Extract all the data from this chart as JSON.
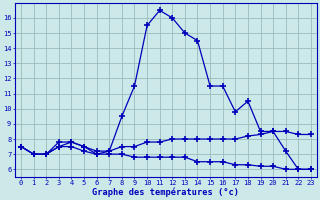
{
  "hours": [
    0,
    1,
    2,
    3,
    4,
    5,
    6,
    7,
    8,
    9,
    10,
    11,
    12,
    13,
    14,
    15,
    16,
    17,
    18,
    19,
    20,
    21,
    22,
    23
  ],
  "temp_max": [
    7.5,
    7.0,
    7.0,
    7.5,
    7.8,
    7.5,
    7.0,
    7.2,
    9.5,
    11.5,
    15.5,
    16.5,
    16.0,
    15.0,
    14.5,
    11.5,
    11.5,
    9.8,
    10.5,
    8.5,
    8.5,
    7.2,
    6.0,
    6.0
  ],
  "temp_avg": [
    7.5,
    7.0,
    7.0,
    7.8,
    7.8,
    7.5,
    7.2,
    7.2,
    7.5,
    7.5,
    7.8,
    7.8,
    8.0,
    8.0,
    8.0,
    8.0,
    8.0,
    8.0,
    8.2,
    8.3,
    8.5,
    8.5,
    8.3,
    8.3
  ],
  "temp_min": [
    7.5,
    7.0,
    7.0,
    7.5,
    7.5,
    7.2,
    7.0,
    7.0,
    7.0,
    6.8,
    6.8,
    6.8,
    6.8,
    6.8,
    6.5,
    6.5,
    6.5,
    6.3,
    6.3,
    6.2,
    6.2,
    6.0,
    6.0,
    6.0
  ],
  "line_color": "#0000bb",
  "bg_color": "#cce8e8",
  "grid_color": "#99bbbb",
  "xlabel": "Graphe des températures (°c)",
  "ylabel_ticks": [
    6,
    7,
    8,
    9,
    10,
    11,
    12,
    13,
    14,
    15,
    16
  ],
  "ylim": [
    5.5,
    17.0
  ],
  "xlim": [
    -0.5,
    23.5
  ]
}
